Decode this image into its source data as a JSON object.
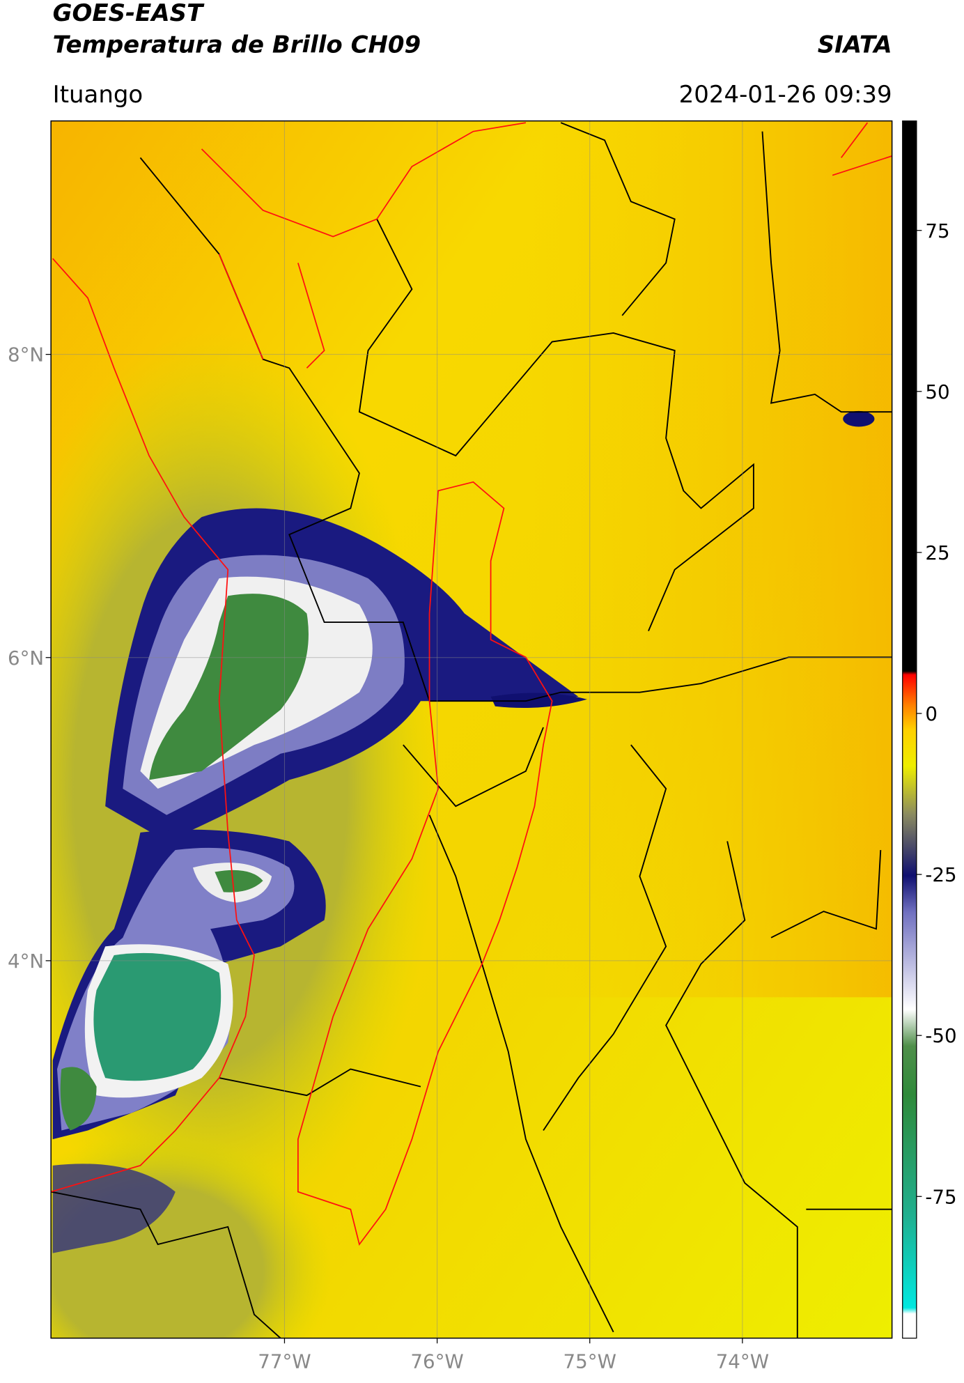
{
  "header": {
    "title": "GOES-EAST",
    "subtitle": "Temperatura de Brillo CH09",
    "organization": "SIATA",
    "location": "Ituango",
    "datetime": "2024-01-26 09:39"
  },
  "map": {
    "xlim": [
      -78.53,
      -73.02
    ],
    "ylim": [
      1.51,
      9.54
    ],
    "xticks": [
      {
        "value": -77,
        "label": "77°W"
      },
      {
        "value": -76,
        "label": "76°W"
      },
      {
        "value": -75,
        "label": "75°W"
      },
      {
        "value": -74,
        "label": "74°W"
      }
    ],
    "yticks": [
      {
        "value": 8,
        "label": "8°N"
      },
      {
        "value": 6,
        "label": "6°N"
      },
      {
        "value": 4,
        "label": "4°N"
      }
    ],
    "grid": true
  },
  "colorbar": {
    "range": [
      -97,
      92
    ],
    "ticks": [
      75,
      50,
      25,
      0,
      -25,
      -50,
      -75
    ]
  }
}
